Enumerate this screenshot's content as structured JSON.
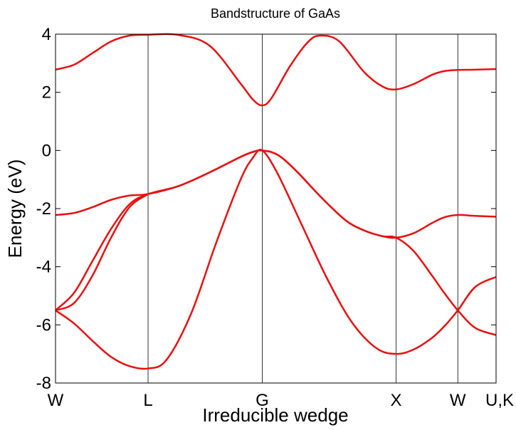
{
  "chart_data": {
    "type": "line",
    "title": "Bandstructure of GaAs",
    "xlabel": "Irreducible wedge",
    "ylabel": "Energy (eV)",
    "ylim": [
      -8,
      4
    ],
    "yticks": [
      -8,
      -6,
      -4,
      -2,
      0,
      2,
      4
    ],
    "grid": false,
    "xlim": [
      0,
      7.14
    ],
    "kpoints": [
      {
        "label": "W",
        "x": 0
      },
      {
        "label": "L",
        "x": 1.5
      },
      {
        "label": "G",
        "x": 3.35
      },
      {
        "label": "X",
        "x": 5.52
      },
      {
        "label": "W",
        "x": 6.52
      },
      {
        "label": "U,K",
        "x": 7.14
      }
    ],
    "series": [
      {
        "x": [
          0,
          0.3,
          0.6,
          0.9,
          1.2,
          1.5,
          2.0,
          2.5,
          3.0,
          3.2,
          3.35,
          3.5,
          3.8,
          4.1,
          4.3,
          4.6,
          5.0,
          5.3,
          5.52,
          5.8,
          6.1,
          6.3,
          6.52,
          6.8,
          7.14
        ],
        "values": [
          2.78,
          2.95,
          3.35,
          3.75,
          3.95,
          3.98,
          3.97,
          3.6,
          2.3,
          1.75,
          1.55,
          1.8,
          2.9,
          3.75,
          3.95,
          3.75,
          2.7,
          2.2,
          2.1,
          2.28,
          2.6,
          2.73,
          2.77,
          2.78,
          2.8
        ]
      },
      {
        "x": [
          0,
          0.3,
          0.6,
          0.9,
          1.2,
          1.5,
          2.0,
          2.5,
          3.0,
          3.2,
          3.35,
          3.6,
          3.9,
          4.3,
          4.7,
          5.0,
          5.3,
          5.52,
          5.8,
          6.1,
          6.3,
          6.52,
          6.8,
          7.14
        ],
        "values": [
          -2.22,
          -2.15,
          -1.95,
          -1.7,
          -1.55,
          -1.5,
          -1.22,
          -0.75,
          -0.22,
          -0.05,
          0,
          -0.15,
          -0.7,
          -1.6,
          -2.4,
          -2.75,
          -2.95,
          -3.0,
          -2.85,
          -2.5,
          -2.3,
          -2.22,
          -2.25,
          -2.28
        ]
      },
      {
        "x": [
          0,
          0.3,
          0.6,
          0.9,
          1.2,
          1.5,
          2.0,
          2.5,
          3.0,
          3.2,
          3.35,
          3.6,
          3.9,
          4.3,
          4.7,
          5.0,
          5.3,
          5.52,
          5.8,
          6.1,
          6.3,
          6.52,
          6.8,
          7.14
        ],
        "values": [
          -5.5,
          -4.9,
          -3.8,
          -2.7,
          -1.85,
          -1.5,
          -1.22,
          -0.75,
          -0.22,
          -0.05,
          0,
          -0.15,
          -0.7,
          -1.6,
          -2.4,
          -2.75,
          -2.95,
          -3.0,
          -3.45,
          -4.3,
          -4.9,
          -5.5,
          -6.1,
          -6.35
        ]
      },
      {
        "x": [
          0,
          0.3,
          0.6,
          0.9,
          1.2,
          1.5,
          1.8,
          2.2,
          2.6,
          3.0,
          3.2,
          3.35,
          3.6,
          4.0,
          4.4,
          4.8,
          5.2,
          5.52,
          5.8,
          6.1,
          6.3,
          6.52,
          6.8,
          7.14
        ],
        "values": [
          -5.5,
          -5.95,
          -6.55,
          -7.1,
          -7.42,
          -7.5,
          -7.2,
          -5.6,
          -3.2,
          -1.0,
          -0.25,
          0,
          -0.8,
          -2.6,
          -4.4,
          -5.9,
          -6.8,
          -7.0,
          -6.85,
          -6.45,
          -6.05,
          -5.5,
          -4.7,
          -4.35
        ]
      },
      {
        "x": [
          0,
          0.3,
          0.6,
          0.9,
          1.2,
          1.5
        ],
        "values": [
          -5.5,
          -5.25,
          -4.3,
          -3.0,
          -1.95,
          -1.5
        ]
      }
    ]
  }
}
